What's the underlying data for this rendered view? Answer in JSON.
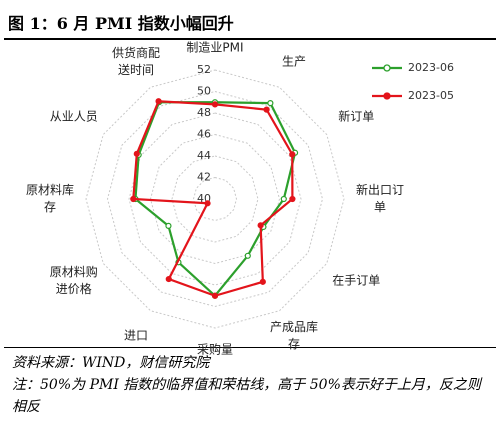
{
  "title": "图 1：6 月 PMI 指数小幅回升",
  "chart_data": {
    "type": "radar",
    "categories": [
      "制造业PMI",
      "生产",
      "新订单",
      "新出口订单",
      "在手订单",
      "产成品库存",
      "采购量",
      "进口",
      "原材料购进价格",
      "原材料库存",
      "从业人员",
      "供货商配送时间"
    ],
    "series": [
      {
        "name": "2023-06",
        "color": "#2ca02c",
        "marker_fill": "#ffffff",
        "values": [
          49.0,
          50.3,
          48.6,
          46.4,
          45.2,
          46.1,
          49.0,
          46.8,
          45.0,
          47.4,
          48.2,
          50.4
        ]
      },
      {
        "name": "2023-05",
        "color": "#e3141b",
        "marker_fill": "#e3141b",
        "values": [
          48.8,
          49.6,
          48.3,
          47.2,
          44.9,
          48.9,
          49.0,
          48.6,
          40.8,
          47.6,
          48.4,
          50.5
        ]
      }
    ],
    "rlim": [
      40,
      52
    ],
    "rticks": [
      40,
      42,
      44,
      46,
      48,
      50,
      52
    ],
    "grid": true,
    "legend": "upper right"
  },
  "footer": {
    "source": "资料来源：WIND，财信研究院",
    "note": "注：50%为 PMI 指数的临界值和荣枯线，高于 50%表示好于上月，反之则相反"
  }
}
